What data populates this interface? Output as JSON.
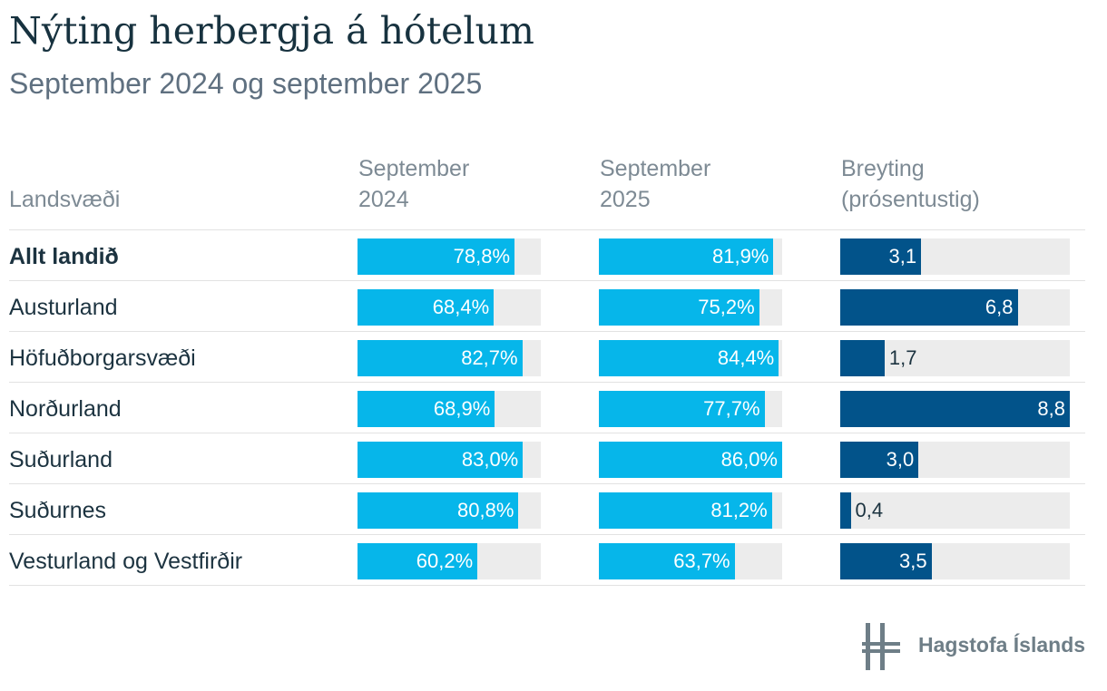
{
  "header": {
    "title": "Nýting herbergja á hótelum",
    "subtitle": "September 2024 og september 2025"
  },
  "columns": {
    "region": "Landsvæði",
    "sep2024": [
      "September",
      "2024"
    ],
    "sep2025": [
      "September",
      "2025"
    ],
    "change": [
      "Breyting",
      "(prósentustig)"
    ]
  },
  "rows": [
    {
      "label": "Allt landið",
      "sep2024": "78,8%",
      "sep2025": "81,9%",
      "change": "3,1"
    },
    {
      "label": "Austurland",
      "sep2024": "68,4%",
      "sep2025": "75,2%",
      "change": "6,8"
    },
    {
      "label": "Höfuðborgarsvæði",
      "sep2024": "82,7%",
      "sep2025": "84,4%",
      "change": "1,7"
    },
    {
      "label": "Norðurland",
      "sep2024": "68,9%",
      "sep2025": "77,7%",
      "change": "8,8"
    },
    {
      "label": "Suðurland",
      "sep2024": "83,0%",
      "sep2025": "86,0%",
      "change": "3,0"
    },
    {
      "label": "Suðurnes",
      "sep2024": "80,8%",
      "sep2025": "81,2%",
      "change": "0,4"
    },
    {
      "label": "Vesturland og Vestfirðir",
      "sep2024": "60,2%",
      "sep2025": "63,7%",
      "change": "3,5"
    }
  ],
  "chart_data": {
    "type": "bar",
    "categories": [
      "Allt landið",
      "Austurland",
      "Höfuðborgarsvæði",
      "Norðurland",
      "Suðurland",
      "Suðurnes",
      "Vesturland og Vestfirðir"
    ],
    "series": [
      {
        "name": "September 2024",
        "values": [
          78.8,
          68.4,
          82.7,
          68.9,
          83.0,
          80.8,
          60.2
        ]
      },
      {
        "name": "September 2025",
        "values": [
          81.9,
          75.2,
          84.4,
          77.7,
          86.0,
          81.2,
          63.7
        ]
      },
      {
        "name": "Breyting (prósentustig)",
        "values": [
          3.1,
          6.8,
          1.7,
          8.8,
          3.0,
          0.4,
          3.5
        ]
      }
    ],
    "colors": {
      "occupancy": "#06b6ea",
      "change": "#02538a",
      "track": "#ececec"
    }
  },
  "branding": {
    "logo_text": "Hagstofa Íslands"
  }
}
